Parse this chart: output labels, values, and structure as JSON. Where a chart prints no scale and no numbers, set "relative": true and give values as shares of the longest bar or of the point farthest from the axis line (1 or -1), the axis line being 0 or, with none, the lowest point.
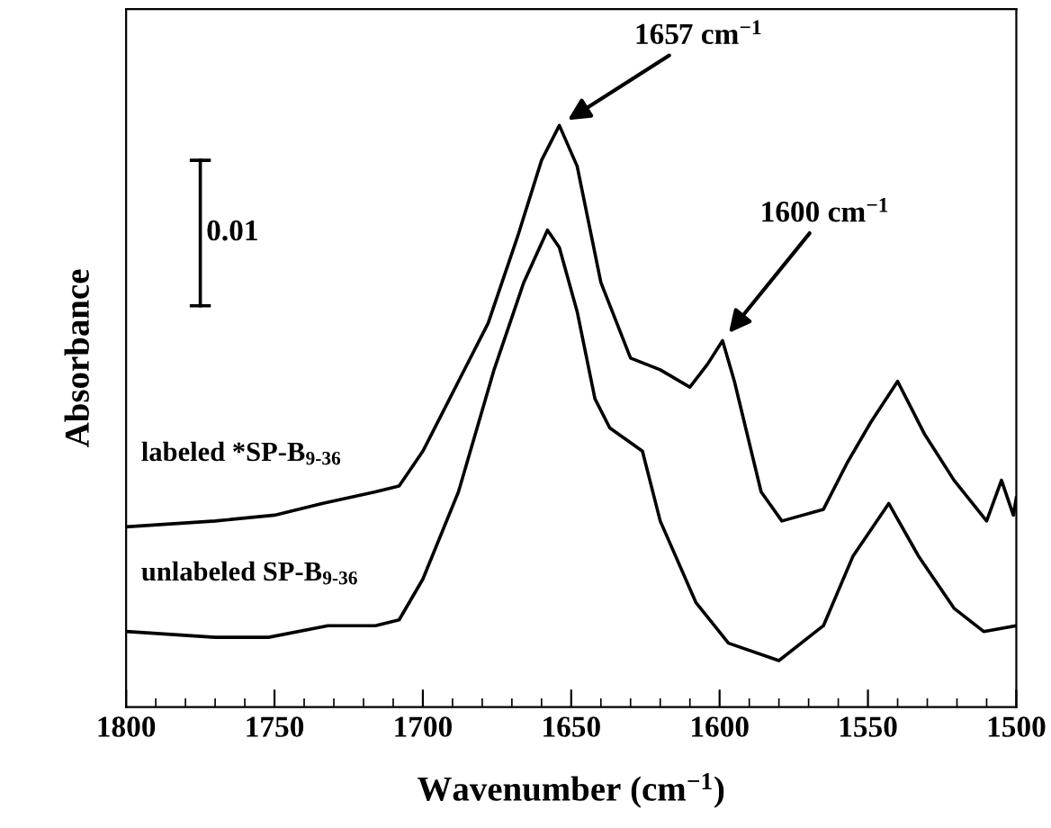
{
  "chart_data": {
    "type": "line",
    "relative": true,
    "xlabel": "Wavenumber (cm$^{−1}$)",
    "ylabel": "Absorbance",
    "xlim": [
      1800,
      1500
    ],
    "xticks": [
      1800,
      1750,
      1700,
      1650,
      1600,
      1550,
      1500
    ],
    "series": [
      {
        "name": "labeled *SP-B$_{9-36}$",
        "color": "#000000",
        "x": [
          1800,
          1770,
          1750,
          1734,
          1716,
          1708,
          1700,
          1688,
          1678,
          1668,
          1660,
          1654,
          1648,
          1640,
          1630,
          1620,
          1610,
          1604,
          1599,
          1595,
          1586,
          1579,
          1565,
          1557,
          1549,
          1540,
          1531,
          1521,
          1510,
          1505,
          1501,
          1500
        ],
        "values": [
          0.31,
          0.32,
          0.33,
          0.35,
          0.37,
          0.38,
          0.44,
          0.56,
          0.66,
          0.81,
          0.94,
          1.0,
          0.93,
          0.73,
          0.6,
          0.58,
          0.55,
          0.59,
          0.63,
          0.56,
          0.37,
          0.32,
          0.34,
          0.42,
          0.49,
          0.56,
          0.47,
          0.39,
          0.32,
          0.39,
          0.33,
          0.36
        ]
      },
      {
        "name": "unlabeled SP-B$_{9-36}$",
        "color": "#000000",
        "x": [
          1800,
          1770,
          1752,
          1732,
          1716,
          1708,
          1700,
          1688,
          1676,
          1666,
          1658,
          1654,
          1648,
          1642,
          1637,
          1626,
          1620,
          1608,
          1597,
          1580,
          1565,
          1555,
          1543,
          1533,
          1521,
          1511,
          1500
        ],
        "values": [
          0.13,
          0.12,
          0.12,
          0.14,
          0.14,
          0.15,
          0.22,
          0.37,
          0.58,
          0.73,
          0.82,
          0.79,
          0.68,
          0.53,
          0.48,
          0.44,
          0.32,
          0.18,
          0.11,
          0.08,
          0.14,
          0.26,
          0.35,
          0.26,
          0.17,
          0.13,
          0.14
        ]
      }
    ],
    "annotations": [
      {
        "text": "1657 cm$^{−1}$",
        "x": 1654,
        "y": 1.0
      },
      {
        "text": "1600 cm$^{−1}$",
        "x": 1599,
        "y": 0.63
      },
      "0.01"
    ],
    "grid": false,
    "legend": false
  }
}
